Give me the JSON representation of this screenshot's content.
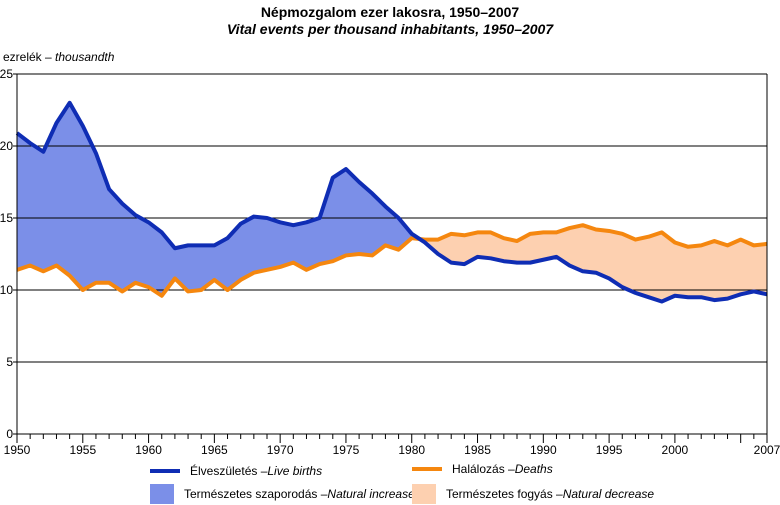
{
  "title": {
    "hu": "Népmozgalom ezer lakosra, 1950–2007",
    "en": "Vital events per thousand inhabitants, 1950–2007"
  },
  "unit": {
    "hu": "ezrelék – ",
    "en": "thousandth"
  },
  "legend": {
    "births": {
      "hu": "Élveszületés – ",
      "en": "Live births"
    },
    "deaths": {
      "hu": "Halálozás – ",
      "en": "Deaths"
    },
    "increase": {
      "hu": "Természetes szaporodás – ",
      "en": "Natural  increase"
    },
    "decrease": {
      "hu": "Természetes fogyás – ",
      "en": "Natural decrease"
    }
  },
  "colors": {
    "births": "#0f2db4",
    "deaths": "#f5870f",
    "increase": "#7b8fe8",
    "decrease": "#fdd0b0",
    "grid": "#000000"
  },
  "chart_data": {
    "type": "area",
    "x_ticks": [
      "1950",
      "1955",
      "1960",
      "1965",
      "1970",
      "1975",
      "1980",
      "1985",
      "1990",
      "1995",
      "2000",
      "2007"
    ],
    "y_ticks": [
      "0",
      "5",
      "10",
      "15",
      "20",
      "25"
    ],
    "ylim": [
      0,
      25
    ],
    "xlim": [
      1950,
      2007
    ],
    "grid": "horizontal",
    "x": [
      1950,
      1951,
      1952,
      1953,
      1954,
      1955,
      1956,
      1957,
      1958,
      1959,
      1960,
      1961,
      1962,
      1963,
      1964,
      1965,
      1966,
      1967,
      1968,
      1969,
      1970,
      1971,
      1972,
      1973,
      1974,
      1975,
      1976,
      1977,
      1978,
      1979,
      1980,
      1981,
      1982,
      1983,
      1984,
      1985,
      1986,
      1987,
      1988,
      1989,
      1990,
      1991,
      1992,
      1993,
      1994,
      1995,
      1996,
      1997,
      1998,
      1999,
      2000,
      2001,
      2002,
      2003,
      2004,
      2005,
      2006,
      2007
    ],
    "series": [
      {
        "name": "Live births",
        "values": [
          20.9,
          20.2,
          19.6,
          21.6,
          23.0,
          21.4,
          19.5,
          17.0,
          16.0,
          15.2,
          14.7,
          14.0,
          12.9,
          13.1,
          13.1,
          13.1,
          13.6,
          14.6,
          15.1,
          15.0,
          14.7,
          14.5,
          14.7,
          15.0,
          17.8,
          18.4,
          17.5,
          16.7,
          15.8,
          15.0,
          13.9,
          13.3,
          12.5,
          11.9,
          11.8,
          12.3,
          12.2,
          12.0,
          11.9,
          11.9,
          12.1,
          12.3,
          11.7,
          11.3,
          11.2,
          10.8,
          10.2,
          9.8,
          9.5,
          9.2,
          9.6,
          9.5,
          9.5,
          9.3,
          9.4,
          9.7,
          9.9,
          9.7
        ]
      },
      {
        "name": "Deaths",
        "values": [
          11.4,
          11.7,
          11.3,
          11.7,
          11.0,
          10.0,
          10.5,
          10.5,
          9.9,
          10.5,
          10.2,
          9.6,
          10.8,
          9.9,
          10.0,
          10.7,
          10.0,
          10.7,
          11.2,
          11.4,
          11.6,
          11.9,
          11.4,
          11.8,
          12.0,
          12.4,
          12.5,
          12.4,
          13.1,
          12.8,
          13.6,
          13.5,
          13.5,
          13.9,
          13.8,
          14.0,
          14.0,
          13.6,
          13.4,
          13.9,
          14.0,
          14.0,
          14.3,
          14.5,
          14.2,
          14.1,
          13.9,
          13.5,
          13.7,
          14.0,
          13.3,
          13.0,
          13.1,
          13.4,
          13.1,
          13.5,
          13.1,
          13.2
        ]
      }
    ]
  }
}
